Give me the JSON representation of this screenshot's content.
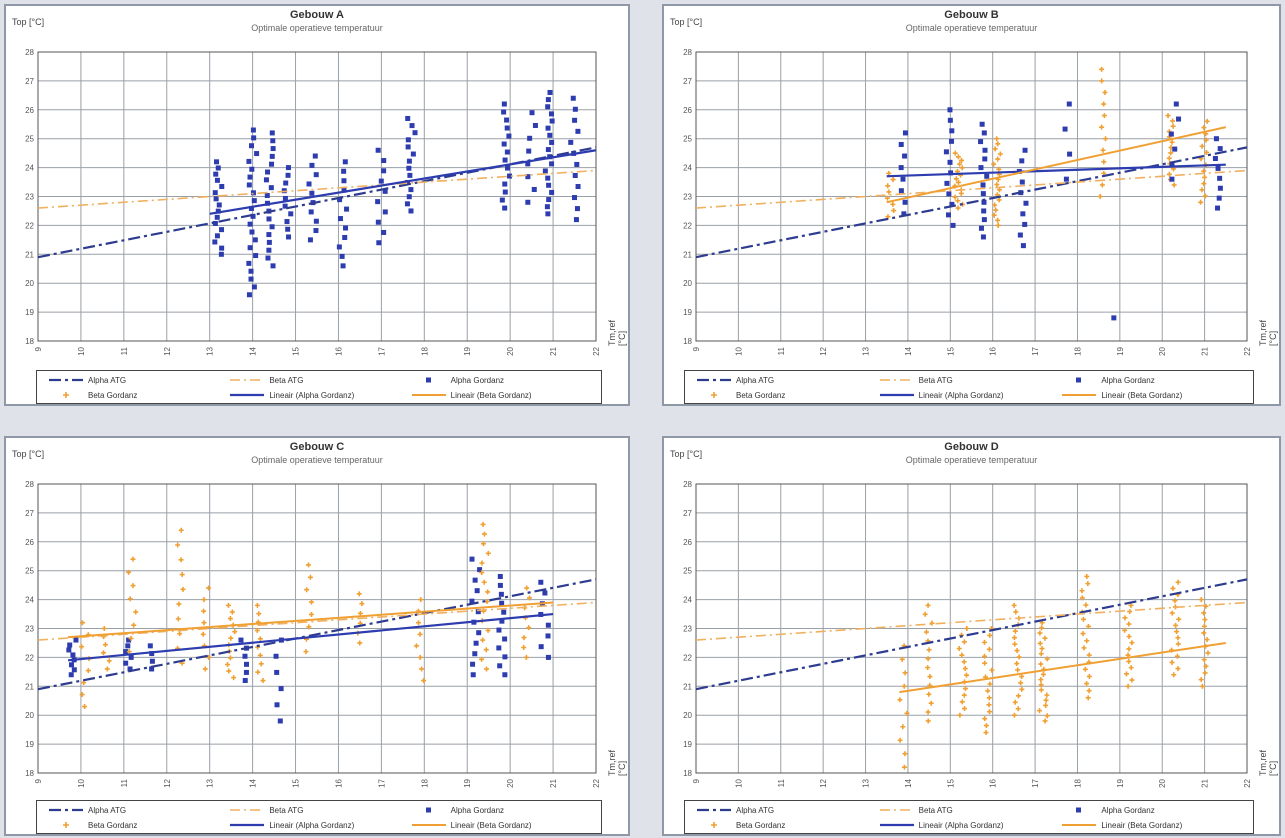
{
  "legend_labels": [
    "Alpha ATG",
    "Beta ATG",
    "Alpha Gordanz",
    "Beta Gordanz",
    "Lineair (Alpha Gordanz)",
    "Lineair (Beta Gordanz)"
  ],
  "colors": {
    "alpha": "#2d3caf",
    "beta": "#f0a032",
    "atg_alpha": "#2d3c8f",
    "atg_beta": "#f0b060",
    "grid": "#9aa0a8"
  },
  "chart_data": [
    {
      "type": "scatter",
      "title": "Gebouw A",
      "subtitle": "Optimale operatieve temperatuur",
      "ylabel": "Top [°C]",
      "xlabel": "Tm,ref [°C]",
      "xlim": [
        9,
        22
      ],
      "ylim": [
        18,
        28
      ],
      "x_ticks": [
        9,
        10,
        11,
        12,
        13,
        14,
        15,
        16,
        17,
        18,
        19,
        20,
        21,
        22
      ],
      "y_ticks": [
        18,
        19,
        20,
        21,
        22,
        23,
        24,
        25,
        26,
        27,
        28
      ],
      "legend_position": "bottom",
      "lines": [
        {
          "name": "Alpha ATG",
          "kind": "atg_alpha",
          "x": [
            9,
            22
          ],
          "y": [
            20.9,
            24.7
          ]
        },
        {
          "name": "Beta ATG",
          "kind": "atg_beta",
          "x": [
            9,
            22
          ],
          "y": [
            22.6,
            23.9
          ]
        },
        {
          "name": "Lineair (Alpha Gordanz)",
          "kind": "alpha",
          "x": [
            13,
            22
          ],
          "y": [
            22.4,
            24.6
          ]
        }
      ],
      "clusters": [
        {
          "series": "alpha",
          "x": 13.2,
          "ymin": 21.0,
          "ymax": 24.2,
          "n": 16
        },
        {
          "series": "alpha",
          "x": 14.0,
          "ymin": 19.6,
          "ymax": 25.3,
          "n": 22
        },
        {
          "series": "alpha",
          "x": 14.4,
          "ymin": 20.6,
          "ymax": 25.2,
          "n": 18
        },
        {
          "series": "alpha",
          "x": 14.8,
          "ymin": 21.6,
          "ymax": 24.0,
          "n": 10
        },
        {
          "series": "alpha",
          "x": 15.4,
          "ymin": 21.5,
          "ymax": 24.4,
          "n": 10
        },
        {
          "series": "alpha",
          "x": 16.1,
          "ymin": 20.6,
          "ymax": 24.2,
          "n": 12
        },
        {
          "series": "alpha",
          "x": 17.0,
          "ymin": 21.4,
          "ymax": 24.6,
          "n": 10
        },
        {
          "series": "alpha",
          "x": 17.7,
          "ymin": 22.5,
          "ymax": 25.7,
          "n": 14
        },
        {
          "series": "alpha",
          "x": 19.9,
          "ymin": 22.6,
          "ymax": 26.2,
          "n": 14
        },
        {
          "series": "alpha",
          "x": 20.5,
          "ymin": 22.8,
          "ymax": 25.9,
          "n": 8
        },
        {
          "series": "alpha",
          "x": 20.9,
          "ymin": 22.4,
          "ymax": 26.6,
          "n": 18
        },
        {
          "series": "alpha",
          "x": 21.5,
          "ymin": 22.2,
          "ymax": 26.4,
          "n": 12
        }
      ]
    },
    {
      "type": "scatter",
      "title": "Gebouw B",
      "subtitle": "Optimale operatieve temperatuur",
      "ylabel": "Top [°C]",
      "xlabel": "Tm,ref [°C]",
      "xlim": [
        9,
        22
      ],
      "ylim": [
        18,
        28
      ],
      "x_ticks": [
        9,
        10,
        11,
        12,
        13,
        14,
        15,
        16,
        17,
        18,
        19,
        20,
        21,
        22
      ],
      "y_ticks": [
        18,
        19,
        20,
        21,
        22,
        23,
        24,
        25,
        26,
        27,
        28
      ],
      "legend_position": "bottom",
      "lines": [
        {
          "name": "Alpha ATG",
          "kind": "atg_alpha",
          "x": [
            9,
            22
          ],
          "y": [
            20.9,
            24.7
          ]
        },
        {
          "name": "Beta ATG",
          "kind": "atg_beta",
          "x": [
            9,
            22
          ],
          "y": [
            22.6,
            23.9
          ]
        },
        {
          "name": "Lineair (Alpha Gordanz)",
          "kind": "alpha",
          "x": [
            13.5,
            21.5
          ],
          "y": [
            23.7,
            24.1
          ]
        },
        {
          "name": "Lineair (Beta Gordanz)",
          "kind": "beta",
          "x": [
            13.5,
            21.5
          ],
          "y": [
            22.8,
            25.4
          ]
        }
      ],
      "clusters": [
        {
          "series": "beta",
          "x": 13.6,
          "ymin": 22.3,
          "ymax": 23.8,
          "n": 8
        },
        {
          "series": "alpha",
          "x": 13.9,
          "ymin": 22.4,
          "ymax": 25.2,
          "n": 8
        },
        {
          "series": "alpha",
          "x": 15.0,
          "ymin": 22.0,
          "ymax": 26.0,
          "n": 12
        },
        {
          "series": "beta",
          "x": 15.2,
          "ymin": 22.6,
          "ymax": 24.5,
          "n": 16
        },
        {
          "series": "alpha",
          "x": 15.8,
          "ymin": 21.6,
          "ymax": 25.5,
          "n": 14
        },
        {
          "series": "beta",
          "x": 16.1,
          "ymin": 22.0,
          "ymax": 25.0,
          "n": 18
        },
        {
          "series": "alpha",
          "x": 16.7,
          "ymin": 21.3,
          "ymax": 24.6,
          "n": 10
        },
        {
          "series": "alpha",
          "x": 17.8,
          "ymin": 23.6,
          "ymax": 26.2,
          "n": 4
        },
        {
          "series": "beta",
          "x": 18.6,
          "ymin": 23.0,
          "ymax": 27.4,
          "n": 12
        },
        {
          "series": "alpha",
          "x": 18.9,
          "ymin": 18.8,
          "ymax": 18.8,
          "n": 1
        },
        {
          "series": "beta",
          "x": 20.2,
          "ymin": 23.4,
          "ymax": 25.8,
          "n": 14
        },
        {
          "series": "alpha",
          "x": 20.3,
          "ymin": 23.6,
          "ymax": 26.2,
          "n": 6
        },
        {
          "series": "beta",
          "x": 21.0,
          "ymin": 22.8,
          "ymax": 25.6,
          "n": 14
        },
        {
          "series": "alpha",
          "x": 21.3,
          "ymin": 22.6,
          "ymax": 25.0,
          "n": 8
        }
      ]
    },
    {
      "type": "scatter",
      "title": "Gebouw C",
      "subtitle": "Optimale operatieve temperatuur",
      "ylabel": "Top [°C]",
      "xlabel": "Tm,ref [°C]",
      "xlim": [
        9,
        22
      ],
      "ylim": [
        18,
        28
      ],
      "x_ticks": [
        9,
        10,
        11,
        12,
        13,
        14,
        15,
        16,
        17,
        18,
        19,
        20,
        21,
        22
      ],
      "y_ticks": [
        18,
        19,
        20,
        21,
        22,
        23,
        24,
        25,
        26,
        27,
        28
      ],
      "legend_position": "bottom",
      "lines": [
        {
          "name": "Alpha ATG",
          "kind": "atg_alpha",
          "x": [
            9,
            22
          ],
          "y": [
            20.9,
            24.7
          ]
        },
        {
          "name": "Beta ATG",
          "kind": "atg_beta",
          "x": [
            9,
            22
          ],
          "y": [
            22.6,
            23.9
          ]
        },
        {
          "name": "Lineair (Alpha Gordanz)",
          "kind": "alpha",
          "x": [
            9.7,
            21
          ],
          "y": [
            21.9,
            23.5
          ]
        },
        {
          "name": "Lineair (Beta Gordanz)",
          "kind": "beta",
          "x": [
            9.7,
            21
          ],
          "y": [
            22.7,
            23.9
          ]
        }
      ],
      "clusters": [
        {
          "series": "alpha",
          "x": 9.8,
          "ymin": 21.4,
          "ymax": 22.6,
          "n": 8
        },
        {
          "series": "beta",
          "x": 10.1,
          "ymin": 20.3,
          "ymax": 23.2,
          "n": 8
        },
        {
          "series": "beta",
          "x": 10.6,
          "ymin": 21.6,
          "ymax": 23.0,
          "n": 6
        },
        {
          "series": "alpha",
          "x": 11.1,
          "ymin": 21.6,
          "ymax": 22.6,
          "n": 6
        },
        {
          "series": "beta",
          "x": 11.2,
          "ymin": 22.2,
          "ymax": 25.4,
          "n": 8
        },
        {
          "series": "alpha",
          "x": 11.6,
          "ymin": 21.6,
          "ymax": 22.4,
          "n": 4
        },
        {
          "series": "beta",
          "x": 12.3,
          "ymin": 21.8,
          "ymax": 26.4,
          "n": 10
        },
        {
          "series": "beta",
          "x": 12.9,
          "ymin": 21.6,
          "ymax": 24.4,
          "n": 8
        },
        {
          "series": "beta",
          "x": 13.5,
          "ymin": 21.3,
          "ymax": 23.8,
          "n": 12
        },
        {
          "series": "alpha",
          "x": 13.8,
          "ymin": 21.2,
          "ymax": 22.6,
          "n": 6
        },
        {
          "series": "beta",
          "x": 14.2,
          "ymin": 21.2,
          "ymax": 23.8,
          "n": 10
        },
        {
          "series": "alpha",
          "x": 14.6,
          "ymin": 19.8,
          "ymax": 22.6,
          "n": 6
        },
        {
          "series": "beta",
          "x": 15.3,
          "ymin": 22.2,
          "ymax": 25.2,
          "n": 8
        },
        {
          "series": "beta",
          "x": 16.5,
          "ymin": 22.5,
          "ymax": 24.2,
          "n": 6
        },
        {
          "series": "beta",
          "x": 17.9,
          "ymin": 21.2,
          "ymax": 24.0,
          "n": 8
        },
        {
          "series": "alpha",
          "x": 19.2,
          "ymin": 21.4,
          "ymax": 25.4,
          "n": 12
        },
        {
          "series": "beta",
          "x": 19.4,
          "ymin": 21.6,
          "ymax": 26.6,
          "n": 16
        },
        {
          "series": "alpha",
          "x": 19.8,
          "ymin": 21.4,
          "ymax": 24.8,
          "n": 12
        },
        {
          "series": "beta",
          "x": 20.4,
          "ymin": 22.0,
          "ymax": 24.4,
          "n": 8
        },
        {
          "series": "alpha",
          "x": 20.8,
          "ymin": 22.0,
          "ymax": 24.6,
          "n": 8
        }
      ]
    },
    {
      "type": "scatter",
      "title": "Gebouw D",
      "subtitle": "Optimale operatieve temperatuur",
      "ylabel": "Top [°C]",
      "xlabel": "Tm,ref [°C]",
      "xlim": [
        9,
        22
      ],
      "ylim": [
        18,
        28
      ],
      "x_ticks": [
        9,
        10,
        11,
        12,
        13,
        14,
        15,
        16,
        17,
        18,
        19,
        20,
        21,
        22
      ],
      "y_ticks": [
        18,
        19,
        20,
        21,
        22,
        23,
        24,
        25,
        26,
        27,
        28
      ],
      "legend_position": "bottom",
      "lines": [
        {
          "name": "Alpha ATG",
          "kind": "atg_alpha",
          "x": [
            9,
            22
          ],
          "y": [
            20.9,
            24.7
          ]
        },
        {
          "name": "Beta ATG",
          "kind": "atg_beta",
          "x": [
            9,
            22
          ],
          "y": [
            22.6,
            23.9
          ]
        },
        {
          "name": "Lineair (Beta Gordanz)",
          "kind": "beta",
          "x": [
            13.8,
            21.5
          ],
          "y": [
            20.8,
            22.5
          ]
        }
      ],
      "clusters": [
        {
          "series": "beta",
          "x": 13.9,
          "ymin": 18.2,
          "ymax": 22.4,
          "n": 10
        },
        {
          "series": "beta",
          "x": 14.5,
          "ymin": 19.8,
          "ymax": 23.8,
          "n": 14
        },
        {
          "series": "beta",
          "x": 15.3,
          "ymin": 20.0,
          "ymax": 23.0,
          "n": 14
        },
        {
          "series": "beta",
          "x": 15.9,
          "ymin": 19.4,
          "ymax": 23.0,
          "n": 16
        },
        {
          "series": "beta",
          "x": 16.6,
          "ymin": 20.0,
          "ymax": 23.8,
          "n": 18
        },
        {
          "series": "beta",
          "x": 17.2,
          "ymin": 19.8,
          "ymax": 23.2,
          "n": 20
        },
        {
          "series": "beta",
          "x": 18.2,
          "ymin": 20.6,
          "ymax": 24.8,
          "n": 18
        },
        {
          "series": "beta",
          "x": 19.2,
          "ymin": 21.0,
          "ymax": 23.8,
          "n": 14
        },
        {
          "series": "beta",
          "x": 20.3,
          "ymin": 21.4,
          "ymax": 24.6,
          "n": 16
        },
        {
          "series": "beta",
          "x": 21.0,
          "ymin": 21.0,
          "ymax": 24.0,
          "n": 14
        }
      ]
    }
  ]
}
